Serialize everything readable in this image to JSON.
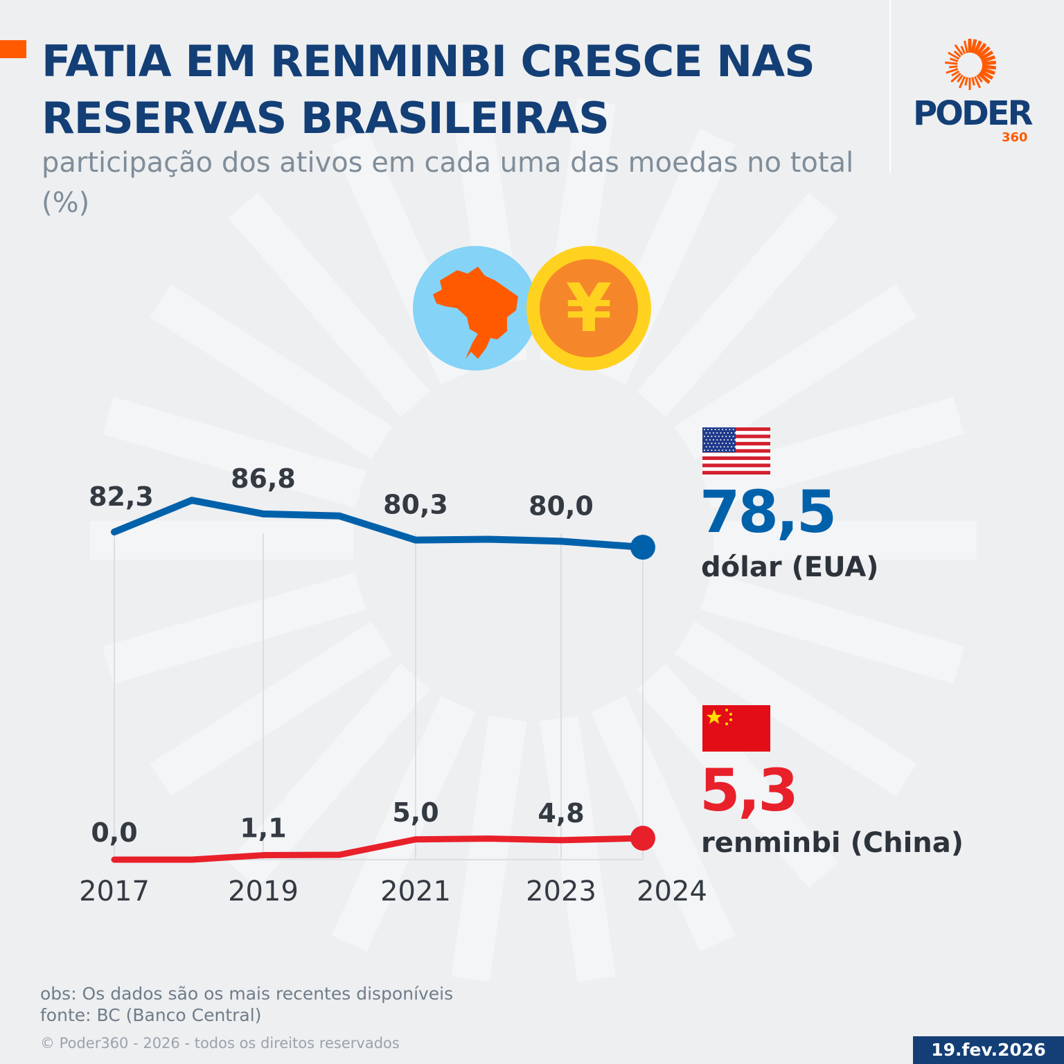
{
  "header": {
    "title": "FATIA EM RENMINBI CRESCE NAS RESERVAS BRASILEIRAS",
    "subtitle": "participação dos ativos em cada uma das moedas no total (%)"
  },
  "logo": {
    "word": "PODER",
    "number": "360"
  },
  "colors": {
    "title": "#133f76",
    "accent": "#ff5a00",
    "dollar": "#0061ab",
    "renminbi": "#e8202a",
    "background": "#eeeff1"
  },
  "icons": [
    "brazil-map-icon",
    "yen-coin-icon",
    "us-flag-icon",
    "china-flag-icon"
  ],
  "coin_symbol": "¥",
  "chart_data": {
    "type": "line",
    "title": "FATIA EM RENMINBI CRESCE NAS RESERVAS BRASILEIRAS",
    "subtitle": "participação dos ativos em cada uma das moedas no total (%)",
    "x": [
      2017,
      2018,
      2019,
      2020,
      2021,
      2022,
      2023,
      2024
    ],
    "tick_labels": [
      "2017",
      "2019",
      "2021",
      "2023",
      "2024"
    ],
    "tick_years": [
      2017,
      2019,
      2021,
      2023,
      2024
    ],
    "grid": "vertical lines at labeled years",
    "series": [
      {
        "name": "dólar (EUA)",
        "color": "#0061ab",
        "values": [
          82.3,
          90.2,
          86.8,
          86.3,
          80.3,
          80.5,
          80.0,
          78.5
        ],
        "labels": {
          "2017": "82,3",
          "2019": "86,8",
          "2021": "80,3",
          "2023": "80,0"
        },
        "final_label": "78,5"
      },
      {
        "name": "renminbi (China)",
        "color": "#e8202a",
        "values": [
          0.0,
          0.0,
          1.1,
          1.2,
          5.0,
          5.2,
          4.8,
          5.3
        ],
        "labels": {
          "2017": "0,0",
          "2019": "1,1",
          "2021": "5,0",
          "2023": "4,8"
        },
        "final_label": "5,3"
      }
    ]
  },
  "footer": {
    "obs": "obs: Os dados são os mais recentes disponíveis",
    "source": "fonte: BC (Banco Central)",
    "copyright": "© Poder360 - 2026 - todos os direitos reservados",
    "date": "19.fev.2026"
  }
}
